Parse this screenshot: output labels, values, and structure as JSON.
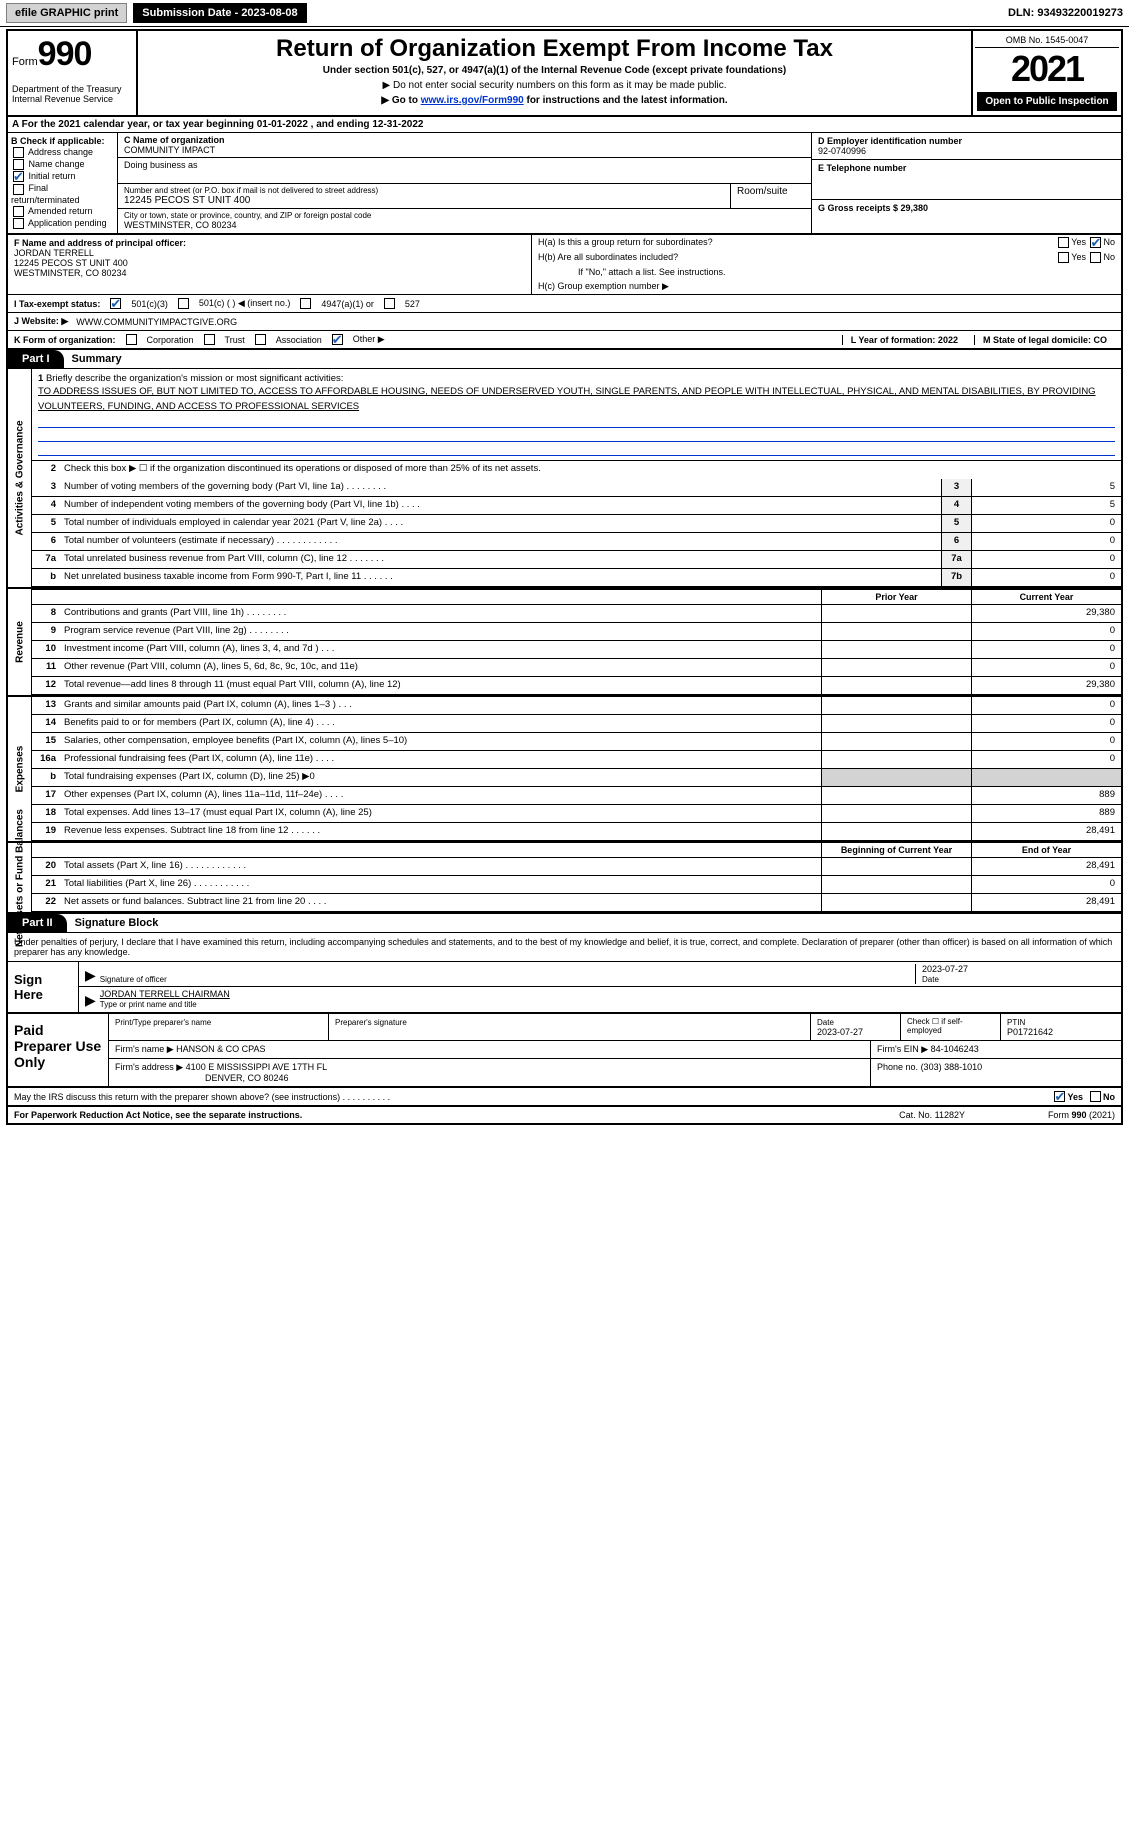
{
  "topbar": {
    "efile": "efile GRAPHIC print",
    "submission_label": "Submission Date - 2023-08-08",
    "dln_label": "DLN: 93493220019273"
  },
  "header": {
    "form_word": "Form",
    "form_number": "990",
    "dept": "Department of the Treasury",
    "irs": "Internal Revenue Service",
    "title": "Return of Organization Exempt From Income Tax",
    "subtitle": "Under section 501(c), 527, or 4947(a)(1) of the Internal Revenue Code (except private foundations)",
    "note1": "▶ Do not enter social security numbers on this form as it may be made public.",
    "note2_pre": "▶ Go to ",
    "note2_link": "www.irs.gov/Form990",
    "note2_post": " for instructions and the latest information.",
    "omb": "OMB No. 1545-0047",
    "year": "2021",
    "open": "Open to Public Inspection"
  },
  "row_a": "A For the 2021 calendar year, or tax year beginning 01-01-2022   , and ending 12-31-2022",
  "box_b": {
    "title": "B Check if applicable:",
    "items": [
      "Address change",
      "Name change",
      "Initial return",
      "Final return/terminated",
      "Amended return",
      "Application pending"
    ],
    "checked_index": 2
  },
  "box_c": {
    "label": "C Name of organization",
    "name": "COMMUNITY IMPACT",
    "dba_label": "Doing business as",
    "street_label": "Number and street (or P.O. box if mail is not delivered to street address)",
    "street": "12245 PECOS ST UNIT 400",
    "suite_label": "Room/suite",
    "city_label": "City or town, state or province, country, and ZIP or foreign postal code",
    "city": "WESTMINSTER, CO  80234"
  },
  "box_d": {
    "label": "D Employer identification number",
    "value": "92-0740996"
  },
  "box_e": {
    "label": "E Telephone number",
    "value": ""
  },
  "box_g": {
    "label": "G Gross receipts $ 29,380"
  },
  "box_f": {
    "label": "F  Name and address of principal officer:",
    "name": "JORDAN TERRELL",
    "street": "12245 PECOS ST UNIT 400",
    "city": "WESTMINSTER, CO  80234"
  },
  "box_h": {
    "a": "H(a)  Is this a group return for subordinates?",
    "a_yes": "Yes",
    "a_no": "No",
    "b": "H(b)  Are all subordinates included?",
    "b_yes": "Yes",
    "b_no": "No",
    "b_note": "If \"No,\" attach a list. See instructions.",
    "c": "H(c)  Group exemption number ▶"
  },
  "row_i": {
    "label": "I   Tax-exempt status:",
    "opts": [
      "501(c)(3)",
      "501(c) (  ) ◀ (insert no.)",
      "4947(a)(1) or",
      "527"
    ]
  },
  "row_j": {
    "label": "J   Website: ▶",
    "value": "WWW.COMMUNITYIMPACTGIVE.ORG"
  },
  "row_k": {
    "label": "K Form of organization:",
    "opts": [
      "Corporation",
      "Trust",
      "Association",
      "Other ▶"
    ],
    "l": "L Year of formation: 2022",
    "m": "M State of legal domicile: CO"
  },
  "part1": {
    "tab": "Part I",
    "title": "Summary"
  },
  "mission": {
    "num": "1",
    "label": "Briefly describe the organization's mission or most significant activities:",
    "text": "TO ADDRESS ISSUES OF, BUT NOT LIMITED TO, ACCESS TO AFFORDABLE HOUSING, NEEDS OF UNDERSERVED YOUTH, SINGLE PARENTS, AND PEOPLE WITH INTELLECTUAL, PHYSICAL, AND MENTAL DISABILITIES, BY PROVIDING VOLUNTEERS, FUNDING, AND ACCESS TO PROFESSIONAL SERVICES"
  },
  "vtabs": {
    "gov": "Activities & Governance",
    "rev": "Revenue",
    "exp": "Expenses",
    "net": "Net Assets or Fund Balances"
  },
  "governance": {
    "line2": "Check this box ▶ ☐  if the organization discontinued its operations or disposed of more than 25% of its net assets.",
    "lines": [
      {
        "n": "3",
        "d": "Number of voting members of the governing body (Part VI, line 1a)   .   .   .   .   .   .   .   .",
        "box": "3",
        "v": "5"
      },
      {
        "n": "4",
        "d": "Number of independent voting members of the governing body (Part VI, line 1b)   .   .   .   .",
        "box": "4",
        "v": "5"
      },
      {
        "n": "5",
        "d": "Total number of individuals employed in calendar year 2021 (Part V, line 2a)   .   .   .   .",
        "box": "5",
        "v": "0"
      },
      {
        "n": "6",
        "d": "Total number of volunteers (estimate if necessary)   .   .   .   .   .   .   .   .   .   .   .   .",
        "box": "6",
        "v": "0"
      },
      {
        "n": "7a",
        "d": "Total unrelated business revenue from Part VIII, column (C), line 12   .   .   .   .   .   .   .",
        "box": "7a",
        "v": "0"
      },
      {
        "n": "b",
        "d": "Net unrelated business taxable income from Form 990-T, Part I, line 11   .   .   .   .   .   .",
        "box": "7b",
        "v": "0"
      }
    ]
  },
  "colheads": {
    "prior": "Prior Year",
    "current": "Current Year",
    "begin": "Beginning of Current Year",
    "end": "End of Year"
  },
  "revenue": [
    {
      "n": "8",
      "d": "Contributions and grants (Part VIII, line 1h)   .   .   .   .   .   .   .   .",
      "p": "",
      "c": "29,380"
    },
    {
      "n": "9",
      "d": "Program service revenue (Part VIII, line 2g)   .   .   .   .   .   .   .   .",
      "p": "",
      "c": "0"
    },
    {
      "n": "10",
      "d": "Investment income (Part VIII, column (A), lines 3, 4, and 7d )   .   .   .",
      "p": "",
      "c": "0"
    },
    {
      "n": "11",
      "d": "Other revenue (Part VIII, column (A), lines 5, 6d, 8c, 9c, 10c, and 11e)",
      "p": "",
      "c": "0"
    },
    {
      "n": "12",
      "d": "Total revenue—add lines 8 through 11 (must equal Part VIII, column (A), line 12)",
      "p": "",
      "c": "29,380"
    }
  ],
  "expenses": [
    {
      "n": "13",
      "d": "Grants and similar amounts paid (Part IX, column (A), lines 1–3 )   .   .   .",
      "p": "",
      "c": "0"
    },
    {
      "n": "14",
      "d": "Benefits paid to or for members (Part IX, column (A), line 4)   .   .   .   .",
      "p": "",
      "c": "0"
    },
    {
      "n": "15",
      "d": "Salaries, other compensation, employee benefits (Part IX, column (A), lines 5–10)",
      "p": "",
      "c": "0"
    },
    {
      "n": "16a",
      "d": "Professional fundraising fees (Part IX, column (A), line 11e)   .   .   .   .",
      "p": "",
      "c": "0"
    },
    {
      "n": "b",
      "d": "Total fundraising expenses (Part IX, column (D), line 25) ▶0",
      "p": "shaded",
      "c": "shaded"
    },
    {
      "n": "17",
      "d": "Other expenses (Part IX, column (A), lines 11a–11d, 11f–24e)   .   .   .   .",
      "p": "",
      "c": "889"
    },
    {
      "n": "18",
      "d": "Total expenses. Add lines 13–17 (must equal Part IX, column (A), line 25)",
      "p": "",
      "c": "889"
    },
    {
      "n": "19",
      "d": "Revenue less expenses. Subtract line 18 from line 12   .   .   .   .   .   .",
      "p": "",
      "c": "28,491"
    }
  ],
  "netassets": [
    {
      "n": "20",
      "d": "Total assets (Part X, line 16)   .   .   .   .   .   .   .   .   .   .   .   .",
      "p": "",
      "c": "28,491"
    },
    {
      "n": "21",
      "d": "Total liabilities (Part X, line 26)   .   .   .   .   .   .   .   .   .   .   .",
      "p": "",
      "c": "0"
    },
    {
      "n": "22",
      "d": "Net assets or fund balances. Subtract line 21 from line 20   .   .   .   .",
      "p": "",
      "c": "28,491"
    }
  ],
  "part2": {
    "tab": "Part II",
    "title": "Signature Block"
  },
  "sig_decl": "Under penalties of perjury, I declare that I have examined this return, including accompanying schedules and statements, and to the best of my knowledge and belief, it is true, correct, and complete. Declaration of preparer (other than officer) is based on all information of which preparer has any knowledge.",
  "sign": {
    "here": "Sign Here",
    "sig_label": "Signature of officer",
    "date": "2023-07-27",
    "date_label": "Date",
    "name": "JORDAN TERRELL CHAIRMAN",
    "name_label": "Type or print name and title"
  },
  "preparer": {
    "label": "Paid Preparer Use Only",
    "h_name": "Print/Type preparer's name",
    "h_sig": "Preparer's signature",
    "h_date": "Date",
    "date": "2023-07-27",
    "h_check": "Check ☐ if self-employed",
    "h_ptin": "PTIN",
    "ptin": "P01721642",
    "firm_label": "Firm's name     ▶",
    "firm": "HANSON & CO CPAS",
    "ein_label": "Firm's EIN ▶",
    "ein": "84-1046243",
    "addr_label": "Firm's address ▶",
    "addr1": "4100 E MISSISSIPPI AVE 17TH FL",
    "addr2": "DENVER, CO  80246",
    "phone_label": "Phone no.",
    "phone": "(303) 388-1010"
  },
  "discuss": "May the IRS discuss this return with the preparer shown above? (see instructions)   .   .   .   .   .   .   .   .   .   .",
  "discuss_yes": "Yes",
  "discuss_no": "No",
  "footer": {
    "left": "For Paperwork Reduction Act Notice, see the separate instructions.",
    "mid": "Cat. No. 11282Y",
    "right": "Form 990 (2021)"
  }
}
